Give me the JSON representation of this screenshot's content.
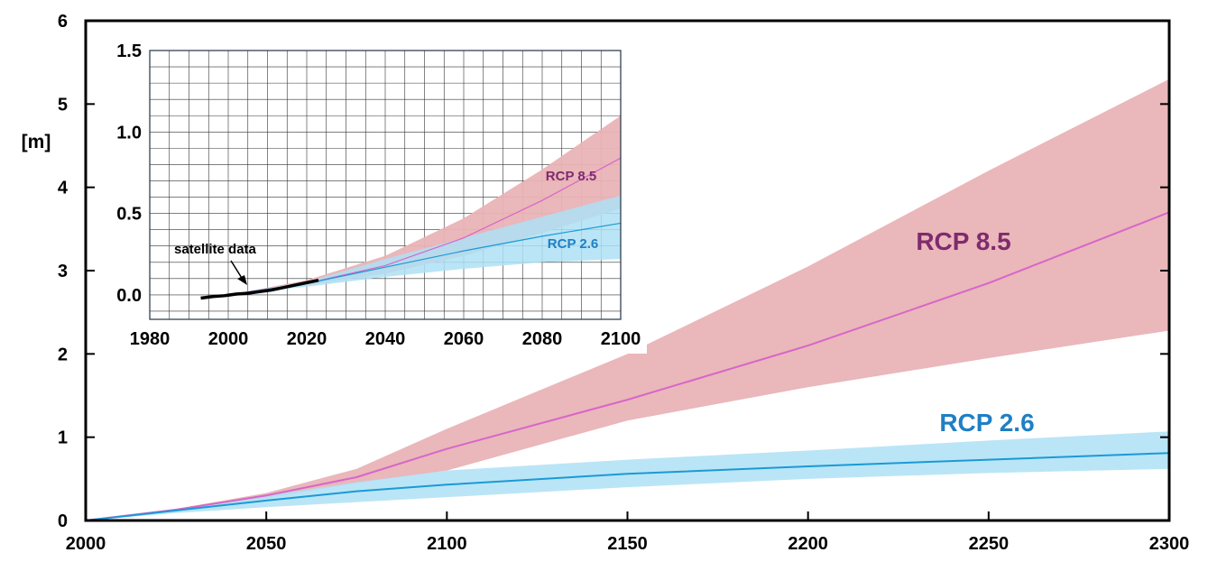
{
  "colors": {
    "rcp85_band": "#e9b3b6",
    "rcp85_line": "#d766c9",
    "rcp85_label": "#7f2a6e",
    "rcp26_band": "#aee0f5",
    "rcp26_line": "#1a9ad6",
    "rcp26_label": "#1f7fc4",
    "grid": "#333333",
    "satellite": "#000000"
  },
  "chart_data": [
    {
      "type": "area",
      "ylabel": "[m]",
      "xlim": [
        2000,
        2300
      ],
      "ylim": [
        0,
        6
      ],
      "xticks": [
        "2000",
        "2050",
        "2100",
        "2150",
        "2200",
        "2250",
        "2300"
      ],
      "yticks": [
        "0",
        "1",
        "2",
        "3",
        "4",
        "5",
        "6"
      ],
      "grid": false,
      "series": [
        {
          "name": "RCP 8.5",
          "x": [
            2000,
            2025,
            2050,
            2075,
            2100,
            2150,
            2200,
            2250,
            2300
          ],
          "mid": [
            0,
            0.13,
            0.3,
            0.52,
            0.86,
            1.45,
            2.1,
            2.85,
            3.7
          ],
          "low": [
            0,
            0.12,
            0.27,
            0.45,
            0.6,
            1.2,
            1.6,
            1.95,
            2.28
          ],
          "high": [
            0,
            0.14,
            0.33,
            0.62,
            1.1,
            2.0,
            3.05,
            4.2,
            5.3
          ]
        },
        {
          "name": "RCP 2.6",
          "x": [
            2000,
            2025,
            2050,
            2075,
            2100,
            2150,
            2200,
            2250,
            2300
          ],
          "mid": [
            0,
            0.12,
            0.24,
            0.35,
            0.43,
            0.56,
            0.65,
            0.73,
            0.81
          ],
          "low": [
            0,
            0.09,
            0.16,
            0.22,
            0.28,
            0.4,
            0.5,
            0.57,
            0.62
          ],
          "high": [
            0,
            0.14,
            0.3,
            0.46,
            0.6,
            0.73,
            0.84,
            0.96,
            1.07
          ]
        }
      ]
    },
    {
      "type": "area",
      "xlim": [
        1980,
        2100
      ],
      "ylim": [
        -0.15,
        1.5
      ],
      "xticks": [
        "1980",
        "2000",
        "2020",
        "2040",
        "2060",
        "2080",
        "2100"
      ],
      "yticks": [
        "0.0",
        "0.5",
        "1.0",
        "1.5"
      ],
      "grid": true,
      "annotation": "satellite data",
      "satellite_data": {
        "x": [
          1993,
          1996,
          1999,
          2002,
          2005,
          2008,
          2011,
          2014,
          2017,
          2020,
          2023
        ],
        "y": [
          -0.02,
          -0.01,
          -0.005,
          0.005,
          0.01,
          0.02,
          0.03,
          0.045,
          0.06,
          0.075,
          0.09
        ]
      },
      "series": [
        {
          "name": "RCP 8.5",
          "x": [
            2000,
            2020,
            2040,
            2060,
            2080,
            2100
          ],
          "mid": [
            0.0,
            0.07,
            0.18,
            0.35,
            0.58,
            0.84
          ],
          "low": [
            0.0,
            0.06,
            0.13,
            0.24,
            0.38,
            0.53
          ],
          "high": [
            0.0,
            0.09,
            0.24,
            0.47,
            0.77,
            1.1
          ]
        },
        {
          "name": "RCP 2.6",
          "x": [
            2000,
            2020,
            2040,
            2060,
            2080,
            2100
          ],
          "mid": [
            0.0,
            0.07,
            0.17,
            0.27,
            0.36,
            0.44
          ],
          "low": [
            0.0,
            0.05,
            0.11,
            0.16,
            0.2,
            0.22
          ],
          "high": [
            0.0,
            0.08,
            0.22,
            0.35,
            0.48,
            0.61
          ]
        }
      ]
    }
  ]
}
